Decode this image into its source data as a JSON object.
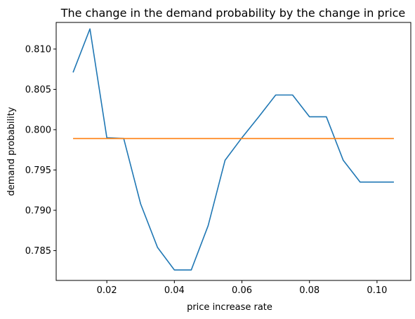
{
  "chart_data": {
    "type": "line",
    "title": "The change in the demand probability by the change in price",
    "xlabel": "price increase rate",
    "ylabel": "demand probability",
    "xlim": [
      0.005,
      0.11
    ],
    "ylim": [
      0.7813,
      0.8133
    ],
    "xticks": [
      0.02,
      0.04,
      0.06,
      0.08,
      0.1
    ],
    "xtick_labels": [
      "0.02",
      "0.04",
      "0.06",
      "0.08",
      "0.10"
    ],
    "yticks": [
      0.785,
      0.79,
      0.795,
      0.8,
      0.805,
      0.81
    ],
    "ytick_labels": [
      "0.785",
      "0.790",
      "0.795",
      "0.800",
      "0.805",
      "0.810"
    ],
    "grid": false,
    "series": [
      {
        "color": "#1f77b4",
        "x": [
          0.01,
          0.015,
          0.02,
          0.025,
          0.03,
          0.035,
          0.04,
          0.045,
          0.05,
          0.055,
          0.06,
          0.065,
          0.07,
          0.075,
          0.08,
          0.085,
          0.09,
          0.095,
          0.1,
          0.105
        ],
        "y": [
          0.8071,
          0.8125,
          0.799,
          0.7989,
          0.7908,
          0.7854,
          0.7826,
          0.7826,
          0.7881,
          0.7962,
          0.799,
          0.8016,
          0.8043,
          0.8043,
          0.8016,
          0.8016,
          0.7962,
          0.7935,
          0.7935,
          0.7935
        ]
      },
      {
        "color": "#ff7f0e",
        "x": [
          0.01,
          0.105
        ],
        "y": [
          0.7989,
          0.7989
        ]
      }
    ]
  }
}
